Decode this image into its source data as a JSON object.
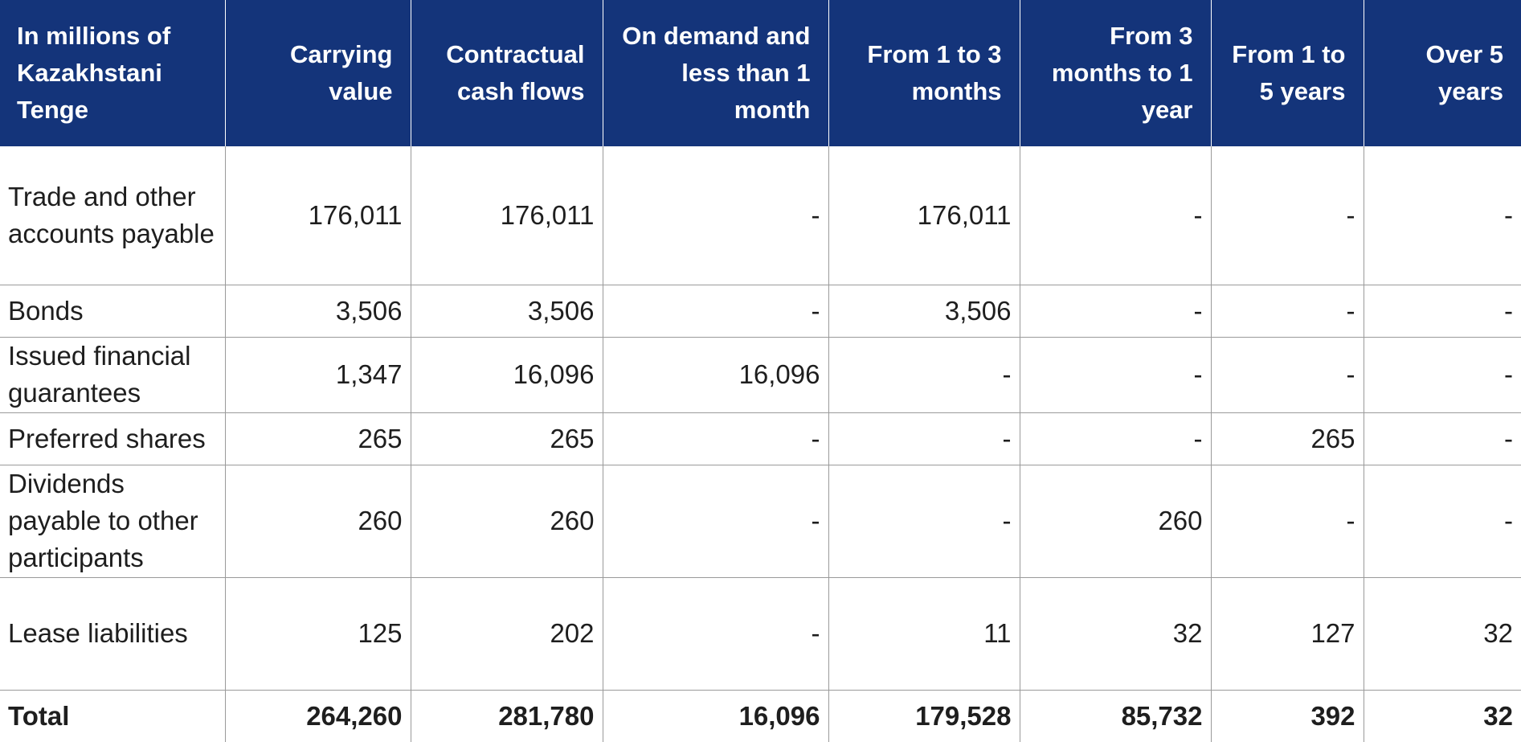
{
  "columns": [
    "In millions of Kazakhstani Tenge",
    "Carrying value",
    "Contractual cash flows",
    "On demand and less than 1 month",
    "From 1 to 3 months",
    "From 3 months to 1 year",
    "From 1 to 5 years",
    "Over 5 years"
  ],
  "rows": [
    {
      "label": "Trade and other accounts payable",
      "values": [
        "176,011",
        "176,011",
        "-",
        "176,011",
        "-",
        "-",
        "-"
      ]
    },
    {
      "label": "Bonds",
      "values": [
        "3,506",
        "3,506",
        "-",
        "3,506",
        "-",
        "-",
        "-"
      ]
    },
    {
      "label": "Issued financial guarantees",
      "values": [
        "1,347",
        "16,096",
        "16,096",
        "-",
        "-",
        "-",
        "-"
      ]
    },
    {
      "label": "Preferred shares",
      "values": [
        "265",
        "265",
        "-",
        "-",
        "-",
        "265",
        "-"
      ]
    },
    {
      "label": "Dividends payable to other participants",
      "values": [
        "260",
        "260",
        "-",
        "-",
        "260",
        "-",
        "-"
      ]
    },
    {
      "label": "Lease liabilities",
      "values": [
        "125",
        "202",
        "-",
        "11",
        "32",
        "127",
        "32"
      ]
    }
  ],
  "total": {
    "label": "Total",
    "values": [
      "264,260",
      "281,780",
      "16,096",
      "179,528",
      "85,732",
      "392",
      "32"
    ]
  },
  "colors": {
    "header_bg": "#14347a",
    "header_text": "#ffffff",
    "grid": "#9a9a9a"
  }
}
